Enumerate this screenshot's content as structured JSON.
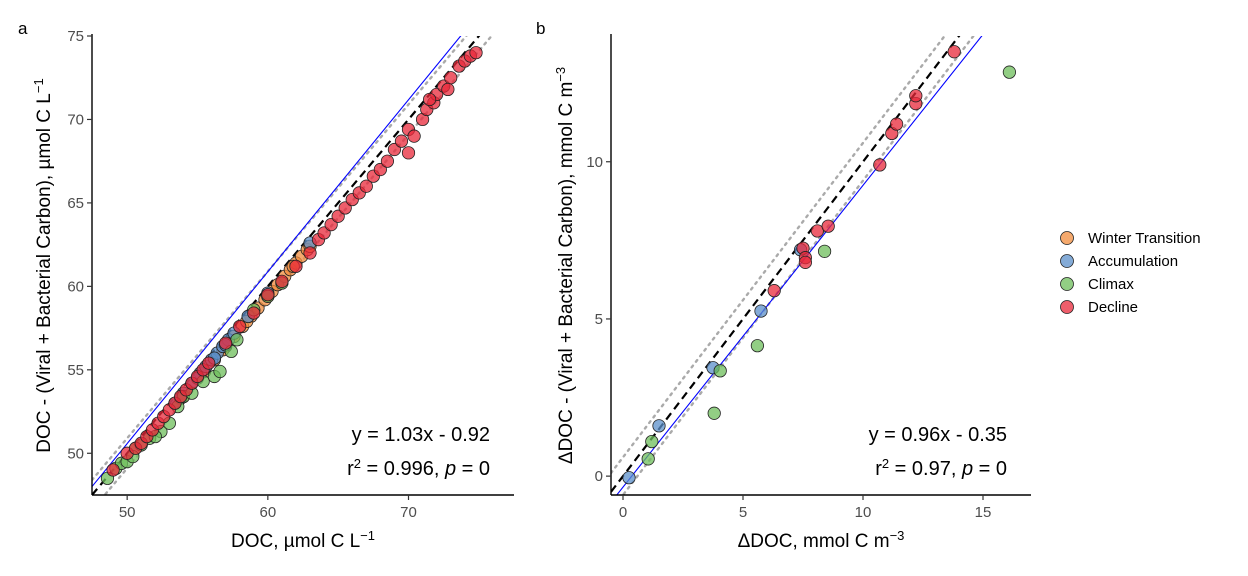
{
  "colors": {
    "Winter Transition": "#F28C3C",
    "Accumulation": "#5B8FC9",
    "Climax": "#6DBE5B",
    "Decline": "#E8283A",
    "fit_line": "#0000FF",
    "one_to_one": "#000000",
    "bounds": "#AAAAAA"
  },
  "legend": {
    "placement": "right",
    "entries": [
      "Winter Transition",
      "Accumulation",
      "Climax",
      "Decline"
    ]
  },
  "chart_data": [
    {
      "panel_label": "a",
      "type": "scatter",
      "xlabel_main": "DOC, µmol C L",
      "xlabel_sup": "−1",
      "ylabel_main": "DOC - (Viral + Bacterial Carbon), µmol C L",
      "ylabel_sup": "−1",
      "xlim": [
        47.5,
        77.5
      ],
      "ylim": [
        47.5,
        75
      ],
      "xticks": [
        50,
        60,
        70
      ],
      "yticks": [
        50,
        55,
        60,
        65,
        70,
        75
      ],
      "grid": false,
      "fit": {
        "slope": 1.03,
        "intercept": -0.92
      },
      "bounds_offset": 0.9,
      "eq_line1": "y = 1.03x - 0.92",
      "eq_r2": "r",
      "eq_r2_sup": "2",
      "eq_r2_val": " = 0.996, ",
      "eq_p": "p",
      "eq_p_val": " = 0",
      "series": [
        {
          "name": "Winter Transition",
          "points": [
            [
              54.0,
              53.4
            ],
            [
              55.5,
              54.9
            ],
            [
              56.2,
              55.6
            ],
            [
              57.0,
              56.4
            ],
            [
              57.6,
              57.0
            ],
            [
              58.2,
              57.6
            ],
            [
              58.8,
              58.2
            ],
            [
              59.3,
              58.7
            ],
            [
              59.8,
              59.2
            ],
            [
              60.3,
              59.7
            ],
            [
              60.7,
              60.1
            ],
            [
              61.2,
              60.6
            ],
            [
              61.6,
              61.0
            ],
            [
              62.0,
              61.4
            ],
            [
              62.4,
              61.8
            ],
            [
              62.8,
              62.2
            ],
            [
              63.0,
              62.4
            ],
            [
              56.8,
              56.2
            ],
            [
              58.5,
              57.9
            ],
            [
              60.0,
              59.4
            ],
            [
              61.8,
              61.2
            ]
          ]
        },
        {
          "name": "Accumulation",
          "points": [
            [
              53.4,
              53.0
            ],
            [
              54.0,
              53.6
            ],
            [
              54.6,
              54.2
            ],
            [
              55.2,
              54.8
            ],
            [
              55.6,
              55.2
            ],
            [
              56.0,
              55.6
            ],
            [
              56.4,
              56.0
            ],
            [
              56.8,
              56.4
            ],
            [
              57.2,
              56.8
            ],
            [
              57.6,
              57.2
            ],
            [
              58.6,
              58.2
            ],
            [
              60.0,
              59.6
            ],
            [
              63.0,
              62.6
            ],
            [
              53.8,
              53.3
            ],
            [
              55.0,
              54.5
            ],
            [
              56.2,
              55.7
            ],
            [
              57.0,
              56.5
            ]
          ]
        },
        {
          "name": "Climax",
          "points": [
            [
              48.6,
              48.5
            ],
            [
              49.2,
              49.1
            ],
            [
              49.6,
              49.4
            ],
            [
              50.0,
              49.5
            ],
            [
              50.6,
              50.3
            ],
            [
              51.0,
              50.5
            ],
            [
              51.6,
              50.9
            ],
            [
              52.4,
              51.3
            ],
            [
              53.0,
              51.8
            ],
            [
              53.6,
              52.8
            ],
            [
              54.0,
              53.4
            ],
            [
              54.6,
              53.6
            ],
            [
              55.4,
              54.3
            ],
            [
              56.2,
              54.6
            ],
            [
              56.6,
              54.9
            ],
            [
              57.4,
              56.1
            ],
            [
              57.8,
              56.8
            ],
            [
              59.0,
              58.6
            ],
            [
              60.0,
              59.4
            ],
            [
              61.0,
              60.2
            ],
            [
              50.4,
              49.8
            ],
            [
              52.0,
              51.0
            ]
          ]
        },
        {
          "name": "Decline",
          "points": [
            [
              49.0,
              49.0
            ],
            [
              50.0,
              50.0
            ],
            [
              50.6,
              50.3
            ],
            [
              51.0,
              50.6
            ],
            [
              51.4,
              51.0
            ],
            [
              51.8,
              51.4
            ],
            [
              52.2,
              51.8
            ],
            [
              52.6,
              52.2
            ],
            [
              53.0,
              52.6
            ],
            [
              53.4,
              53.0
            ],
            [
              53.8,
              53.4
            ],
            [
              54.2,
              53.8
            ],
            [
              54.6,
              54.2
            ],
            [
              55.0,
              54.6
            ],
            [
              55.4,
              55.0
            ],
            [
              55.8,
              55.4
            ],
            [
              57.0,
              56.6
            ],
            [
              58.0,
              57.6
            ],
            [
              59.0,
              58.4
            ],
            [
              60.0,
              59.5
            ],
            [
              61.0,
              60.3
            ],
            [
              62.0,
              61.2
            ],
            [
              63.0,
              62.0
            ],
            [
              63.6,
              62.8
            ],
            [
              64.0,
              63.2
            ],
            [
              64.5,
              63.7
            ],
            [
              65.0,
              64.2
            ],
            [
              65.5,
              64.7
            ],
            [
              66.0,
              65.2
            ],
            [
              66.5,
              65.6
            ],
            [
              67.0,
              66.0
            ],
            [
              67.5,
              66.6
            ],
            [
              68.0,
              67.0
            ],
            [
              68.5,
              67.5
            ],
            [
              69.0,
              68.2
            ],
            [
              69.5,
              68.7
            ],
            [
              70.0,
              69.4
            ],
            [
              70.4,
              69.0
            ],
            [
              71.0,
              70.0
            ],
            [
              71.3,
              70.6
            ],
            [
              71.8,
              71.0
            ],
            [
              72.0,
              71.5
            ],
            [
              72.5,
              72.0
            ],
            [
              73.0,
              72.5
            ],
            [
              73.6,
              73.2
            ],
            [
              74.0,
              73.5
            ],
            [
              74.4,
              73.8
            ],
            [
              74.8,
              74.0
            ],
            [
              71.5,
              71.2
            ],
            [
              70.0,
              68.0
            ],
            [
              72.8,
              71.8
            ]
          ]
        }
      ]
    },
    {
      "panel_label": "b",
      "type": "scatter",
      "xlabel_main": "ΔDOC, mmol C m",
      "xlabel_sup": "−3",
      "ylabel_main": "ΔDOC - (Viral + Bacterial Carbon), mmol C m",
      "ylabel_sup": "−3",
      "xlim": [
        -0.5,
        17.0
      ],
      "ylim": [
        -0.6,
        14.0
      ],
      "xticks": [
        0,
        5,
        10,
        15
      ],
      "yticks": [
        0,
        5,
        10
      ],
      "grid": false,
      "fit": {
        "slope": 0.96,
        "intercept": -0.35
      },
      "bounds_offset": 0.6,
      "eq_line1": "y = 0.96x - 0.35",
      "eq_r2": "r",
      "eq_r2_sup": "2",
      "eq_r2_val": " = 0.97, ",
      "eq_p": "p",
      "eq_p_val": " = 0",
      "series": [
        {
          "name": "Accumulation",
          "points": [
            [
              0.25,
              -0.05
            ],
            [
              1.5,
              1.6
            ],
            [
              3.75,
              3.45
            ],
            [
              5.75,
              5.25
            ],
            [
              7.4,
              7.2
            ]
          ]
        },
        {
          "name": "Climax",
          "points": [
            [
              1.05,
              0.55
            ],
            [
              1.2,
              1.1
            ],
            [
              3.8,
              2.0
            ],
            [
              4.05,
              3.35
            ],
            [
              5.6,
              4.15
            ],
            [
              8.4,
              7.15
            ],
            [
              16.1,
              12.85
            ]
          ]
        },
        {
          "name": "Decline",
          "points": [
            [
              6.3,
              5.9
            ],
            [
              7.5,
              7.25
            ],
            [
              7.6,
              6.95
            ],
            [
              7.6,
              6.8
            ],
            [
              8.1,
              7.8
            ],
            [
              8.55,
              7.95
            ],
            [
              10.7,
              9.9
            ],
            [
              11.2,
              10.9
            ],
            [
              11.4,
              11.2
            ],
            [
              12.2,
              11.85
            ],
            [
              12.2,
              12.1
            ],
            [
              13.8,
              13.5
            ]
          ]
        }
      ]
    }
  ]
}
